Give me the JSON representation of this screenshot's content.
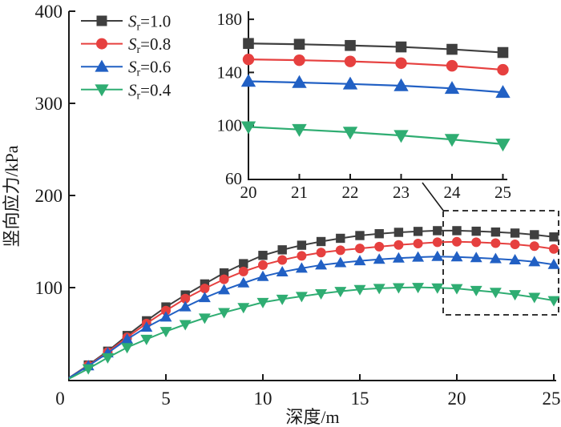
{
  "figure": {
    "background": "#ffffff",
    "axis_color": "#1a1a1a"
  },
  "legend": {
    "position": "top-left",
    "entries": [
      {
        "id": "sr-1.0",
        "base": "S",
        "sub": "r",
        "rest": "=1.0",
        "color": "#3f3f3f",
        "marker": "square"
      },
      {
        "id": "sr-0.8",
        "base": "S",
        "sub": "r",
        "rest": "=0.8",
        "color": "#e6403f",
        "marker": "circle"
      },
      {
        "id": "sr-0.6",
        "base": "S",
        "sub": "r",
        "rest": "=0.6",
        "color": "#2160c4",
        "marker": "triangle-up"
      },
      {
        "id": "sr-0.4",
        "base": "S",
        "sub": "r",
        "rest": "=0.4",
        "color": "#2fad72",
        "marker": "triangle-down"
      }
    ]
  },
  "annotations": {
    "zoom_box_style": "dashed",
    "zoom_box_links_inset": true
  },
  "chart_data": [
    {
      "id": "main",
      "type": "line",
      "title": "",
      "xlabel": "深度/m",
      "ylabel": "竖向应力/kPa",
      "xlim": [
        0,
        25
      ],
      "ylim": [
        0,
        400
      ],
      "xticks": [
        0,
        5,
        10,
        15,
        20,
        25
      ],
      "yticks": [
        0,
        100,
        200,
        300,
        400
      ],
      "grid": false,
      "legend_position": "top-left",
      "x": [
        0,
        1,
        2,
        3,
        4,
        5,
        6,
        7,
        8,
        9,
        10,
        11,
        12,
        13,
        14,
        15,
        16,
        17,
        18,
        19,
        20,
        21,
        22,
        23,
        24,
        25
      ],
      "series": [
        {
          "id": "sr-1.0",
          "name": "Sr=1.0",
          "marker": "square",
          "color": "#3f3f3f",
          "values": [
            2,
            16,
            31,
            48,
            64,
            79,
            92,
            104,
            116,
            126,
            135,
            141,
            146,
            150,
            153.5,
            156.5,
            158.5,
            160,
            161,
            161.8,
            161.8,
            161.2,
            160.3,
            159.2,
            157.4,
            155
          ]
        },
        {
          "id": "sr-0.8",
          "name": "Sr=0.8",
          "marker": "circle",
          "color": "#e6403f",
          "values": [
            2,
            15.5,
            30,
            46,
            61,
            75,
            88,
            99,
            109,
            117.5,
            124.5,
            130,
            134.5,
            138,
            140.5,
            142.5,
            144.5,
            146.3,
            147.8,
            149.2,
            149.8,
            149.2,
            148.3,
            147,
            145,
            142
          ]
        },
        {
          "id": "sr-0.6",
          "name": "Sr=0.6",
          "marker": "triangle-up",
          "color": "#2160c4",
          "values": [
            2,
            15,
            29,
            44,
            57,
            68,
            79,
            89,
            97.5,
            105,
            112,
            117,
            121,
            124.5,
            127,
            129,
            130.7,
            132,
            133,
            133.7,
            133.3,
            132.4,
            131.3,
            130,
            128,
            125
          ]
        },
        {
          "id": "sr-0.4",
          "name": "Sr=0.4",
          "marker": "triangle-down",
          "color": "#2fad72",
          "values": [
            1,
            12,
            24,
            35,
            44,
            52.5,
            60,
            67,
            73,
            78.5,
            84,
            87.5,
            90.5,
            93.5,
            96,
            98,
            99.2,
            100,
            100.3,
            99.8,
            99,
            97,
            95,
            92.5,
            89.5,
            86
          ]
        }
      ]
    },
    {
      "id": "inset",
      "type": "line",
      "title": "",
      "xlabel": "",
      "ylabel": "",
      "xlim": [
        20,
        25
      ],
      "ylim": [
        60,
        180
      ],
      "xticks": [
        20,
        21,
        22,
        23,
        24,
        25
      ],
      "yticks": [
        60,
        100,
        140,
        180
      ],
      "grid": false,
      "x": [
        20,
        21,
        22,
        23,
        24,
        25
      ],
      "series": [
        {
          "id": "sr-1.0",
          "name": "Sr=1.0",
          "marker": "square",
          "color": "#3f3f3f",
          "values": [
            161.8,
            161.2,
            160.3,
            159.2,
            157.4,
            155
          ]
        },
        {
          "id": "sr-0.8",
          "name": "Sr=0.8",
          "marker": "circle",
          "color": "#e6403f",
          "values": [
            149.8,
            149.2,
            148.3,
            147,
            145,
            142
          ]
        },
        {
          "id": "sr-0.6",
          "name": "Sr=0.6",
          "marker": "triangle-up",
          "color": "#2160c4",
          "values": [
            133.3,
            132.4,
            131.3,
            130,
            128,
            125
          ]
        },
        {
          "id": "sr-0.4",
          "name": "Sr=0.4",
          "marker": "triangle-down",
          "color": "#2fad72",
          "values": [
            99,
            97,
            95,
            92.5,
            89.5,
            86
          ]
        }
      ]
    }
  ]
}
